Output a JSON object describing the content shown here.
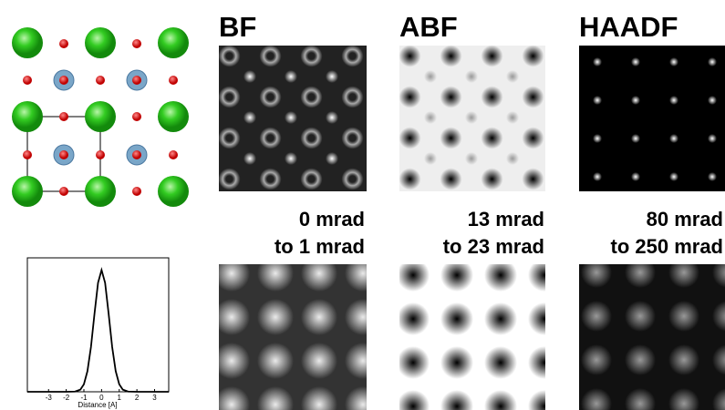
{
  "panels": [
    {
      "title": "BF",
      "range_from": "0 mrad",
      "range_to": "to 1 mrad"
    },
    {
      "title": "ABF",
      "range_from": "13 mrad",
      "range_to": "to 23 mrad"
    },
    {
      "title": "HAADF",
      "range_from": "80 mrad",
      "range_to": "to 250 mrad"
    }
  ],
  "chart_data": {
    "type": "line",
    "xlabel": "Distance [A]",
    "x": [
      -4.2,
      -3,
      -2,
      -1.5,
      -1.2,
      -1,
      -0.8,
      -0.6,
      -0.4,
      -0.2,
      0,
      0.2,
      0.4,
      0.6,
      0.8,
      1,
      1.2,
      1.5,
      2,
      3,
      3.8
    ],
    "series": [
      {
        "color": "#000000",
        "values": [
          0,
          0,
          0,
          0.002,
          0.018,
          0.062,
          0.169,
          0.368,
          0.641,
          0.895,
          1,
          0.895,
          0.641,
          0.368,
          0.169,
          0.062,
          0.018,
          0.002,
          0,
          0,
          0
        ]
      }
    ],
    "xlim": [
      -4.2,
      3.8
    ],
    "xticks": [
      -3,
      -2,
      -1,
      0,
      1,
      2,
      3
    ],
    "ylim": [
      0,
      1.1
    ]
  }
}
